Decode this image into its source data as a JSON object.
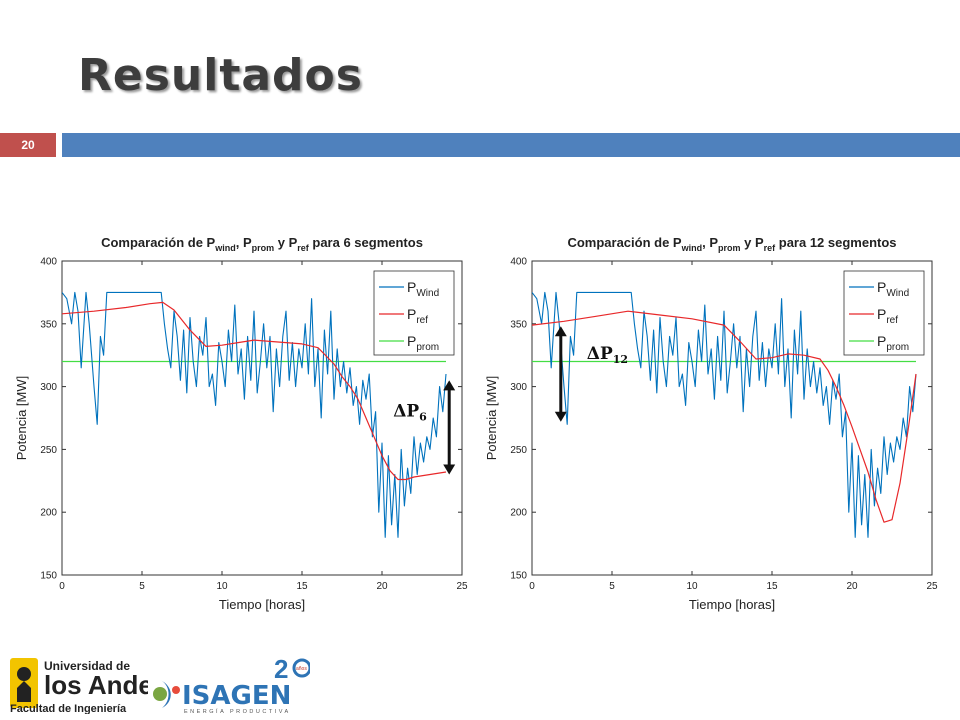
{
  "slide": {
    "title": "Resultados",
    "number": "20"
  },
  "colors": {
    "wind": "#0072bd",
    "ref": "#e8282a",
    "prom": "#44dd44",
    "accent_red": "#c0504d",
    "accent_blue": "#4f81bd"
  },
  "chart_data": [
    {
      "type": "line",
      "title_parts": [
        "Comparación de P",
        "wind",
        ", P",
        "prom",
        " y P",
        "ref",
        " para 6 segmentos"
      ],
      "xlabel": "Tiempo [horas]",
      "ylabel": "Potencia [MW]",
      "xlim": [
        0,
        25
      ],
      "ylim": [
        150,
        400
      ],
      "xticks": [
        0,
        5,
        10,
        15,
        20,
        25
      ],
      "yticks": [
        150,
        200,
        250,
        300,
        350,
        400
      ],
      "legend": {
        "placement": "top-right",
        "entries": [
          {
            "main": "P",
            "sub": "Wind"
          },
          {
            "main": "P",
            "sub": "ref"
          },
          {
            "main": "P",
            "sub": "prom"
          }
        ]
      },
      "annotation": {
        "main": "ΔP",
        "sub": "6",
        "arrow_x": 24.2,
        "arrow_y": [
          305,
          230
        ]
      },
      "series": [
        {
          "name": "P_Wind",
          "x": [
            0,
            0.3,
            0.6,
            0.8,
            1,
            1.2,
            1.5,
            1.7,
            2,
            2.2,
            2.4,
            2.6,
            2.8,
            3,
            3.3,
            3.6,
            4,
            4.3,
            4.6,
            5,
            5.3,
            5.6,
            5.9,
            6.2,
            6.4,
            6.6,
            6.8,
            7,
            7.2,
            7.4,
            7.6,
            7.8,
            8,
            8.2,
            8.4,
            8.6,
            8.8,
            9,
            9.2,
            9.4,
            9.6,
            9.8,
            10,
            10.2,
            10.4,
            10.6,
            10.8,
            11,
            11.2,
            11.4,
            11.6,
            11.8,
            12,
            12.2,
            12.4,
            12.6,
            12.8,
            13,
            13.2,
            13.4,
            13.6,
            13.8,
            14,
            14.2,
            14.4,
            14.6,
            14.8,
            15,
            15.2,
            15.4,
            15.6,
            15.8,
            16,
            16.2,
            16.4,
            16.6,
            16.8,
            17,
            17.2,
            17.4,
            17.6,
            17.8,
            18,
            18.2,
            18.4,
            18.6,
            18.8,
            19,
            19.2,
            19.4,
            19.6,
            19.8,
            20,
            20.2,
            20.4,
            20.6,
            20.8,
            21,
            21.2,
            21.4,
            21.6,
            21.8,
            22,
            22.2,
            22.4,
            22.6,
            22.8,
            23,
            23.2,
            23.4,
            23.6,
            23.8,
            24
          ],
          "values": [
            375,
            370,
            350,
            375,
            360,
            315,
            375,
            350,
            300,
            270,
            340,
            325,
            375,
            375,
            375,
            375,
            375,
            375,
            375,
            375,
            375,
            375,
            375,
            375,
            350,
            330,
            315,
            360,
            340,
            305,
            345,
            295,
            355,
            320,
            300,
            340,
            325,
            355,
            300,
            310,
            285,
            335,
            320,
            300,
            345,
            320,
            365,
            310,
            330,
            290,
            340,
            305,
            360,
            295,
            320,
            350,
            315,
            340,
            280,
            330,
            300,
            340,
            360,
            305,
            335,
            300,
            330,
            315,
            350,
            310,
            370,
            300,
            330,
            275,
            345,
            310,
            360,
            290,
            330,
            300,
            320,
            295,
            315,
            285,
            300,
            270,
            305,
            290,
            310,
            260,
            280,
            200,
            255,
            180,
            245,
            190,
            230,
            180,
            250,
            205,
            235,
            215,
            260,
            230,
            255,
            240,
            260,
            250,
            275,
            260,
            300,
            280,
            310
          ]
        },
        {
          "name": "P_ref",
          "x": [
            0,
            2,
            4,
            5.5,
            6.3,
            7,
            8,
            9,
            10,
            11,
            12,
            13,
            14,
            15,
            16,
            17,
            17.5,
            18,
            18.5,
            19,
            19.5,
            20,
            20.5,
            21,
            21.5,
            22,
            23,
            24
          ],
          "values": [
            358,
            360,
            363,
            366,
            367,
            361,
            345,
            332,
            333,
            335,
            337,
            336,
            335,
            334,
            331,
            318,
            308,
            300,
            290,
            275,
            260,
            245,
            233,
            226,
            226,
            228,
            230,
            232
          ]
        },
        {
          "name": "P_prom",
          "x": [
            0,
            24
          ],
          "values": [
            320,
            320
          ]
        }
      ]
    },
    {
      "type": "line",
      "title_parts": [
        "Comparación de P",
        "wind",
        ", P",
        "prom",
        " y P",
        "ref",
        " para 12 segmentos"
      ],
      "xlabel": "Tiempo [horas]",
      "ylabel": "Potencia [MW]",
      "xlim": [
        0,
        25
      ],
      "ylim": [
        150,
        400
      ],
      "xticks": [
        0,
        5,
        10,
        15,
        20,
        25
      ],
      "yticks": [
        150,
        200,
        250,
        300,
        350,
        400
      ],
      "legend": {
        "placement": "top-right",
        "entries": [
          {
            "main": "P",
            "sub": "Wind"
          },
          {
            "main": "P",
            "sub": "ref"
          },
          {
            "main": "P",
            "sub": "prom"
          }
        ]
      },
      "annotation": {
        "main": "ΔP",
        "sub": "12",
        "arrow_x": 1.8,
        "arrow_y": [
          348,
          272
        ]
      },
      "series": [
        {
          "name": "P_Wind",
          "x": [
            0,
            0.3,
            0.6,
            0.8,
            1,
            1.2,
            1.5,
            1.7,
            2,
            2.2,
            2.4,
            2.6,
            2.8,
            3,
            3.3,
            3.6,
            4,
            4.3,
            4.6,
            5,
            5.3,
            5.6,
            5.9,
            6.2,
            6.4,
            6.6,
            6.8,
            7,
            7.2,
            7.4,
            7.6,
            7.8,
            8,
            8.2,
            8.4,
            8.6,
            8.8,
            9,
            9.2,
            9.4,
            9.6,
            9.8,
            10,
            10.2,
            10.4,
            10.6,
            10.8,
            11,
            11.2,
            11.4,
            11.6,
            11.8,
            12,
            12.2,
            12.4,
            12.6,
            12.8,
            13,
            13.2,
            13.4,
            13.6,
            13.8,
            14,
            14.2,
            14.4,
            14.6,
            14.8,
            15,
            15.2,
            15.4,
            15.6,
            15.8,
            16,
            16.2,
            16.4,
            16.6,
            16.8,
            17,
            17.2,
            17.4,
            17.6,
            17.8,
            18,
            18.2,
            18.4,
            18.6,
            18.8,
            19,
            19.2,
            19.4,
            19.6,
            19.8,
            20,
            20.2,
            20.4,
            20.6,
            20.8,
            21,
            21.2,
            21.4,
            21.6,
            21.8,
            22,
            22.2,
            22.4,
            22.6,
            22.8,
            23,
            23.2,
            23.4,
            23.6,
            23.8,
            24
          ],
          "values": [
            375,
            370,
            350,
            375,
            360,
            315,
            375,
            350,
            300,
            270,
            340,
            325,
            375,
            375,
            375,
            375,
            375,
            375,
            375,
            375,
            375,
            375,
            375,
            375,
            350,
            330,
            315,
            360,
            340,
            305,
            345,
            295,
            355,
            320,
            300,
            340,
            325,
            355,
            300,
            310,
            285,
            335,
            320,
            300,
            345,
            320,
            365,
            310,
            330,
            290,
            340,
            305,
            360,
            295,
            320,
            350,
            315,
            340,
            280,
            330,
            300,
            340,
            360,
            305,
            335,
            300,
            330,
            315,
            350,
            310,
            370,
            300,
            330,
            275,
            345,
            310,
            360,
            290,
            330,
            300,
            320,
            295,
            315,
            285,
            300,
            270,
            305,
            290,
            310,
            260,
            280,
            200,
            255,
            180,
            245,
            190,
            230,
            180,
            250,
            205,
            235,
            215,
            260,
            230,
            255,
            240,
            260,
            250,
            275,
            260,
            300,
            280,
            310
          ]
        },
        {
          "name": "P_ref",
          "x": [
            0,
            2,
            4,
            6,
            8,
            10,
            12,
            13,
            14,
            15,
            16,
            17,
            18,
            18.5,
            19,
            19.5,
            20,
            20.5,
            21,
            21.5,
            22,
            22.5,
            23,
            23.5,
            24
          ],
          "values": [
            349,
            352,
            356,
            360,
            357,
            354,
            349,
            336,
            322,
            323,
            326,
            325,
            322,
            313,
            300,
            285,
            268,
            250,
            232,
            210,
            192,
            194,
            223,
            265,
            310
          ]
        },
        {
          "name": "P_prom",
          "x": [
            0,
            24
          ],
          "values": [
            320,
            320
          ]
        }
      ]
    }
  ]
}
